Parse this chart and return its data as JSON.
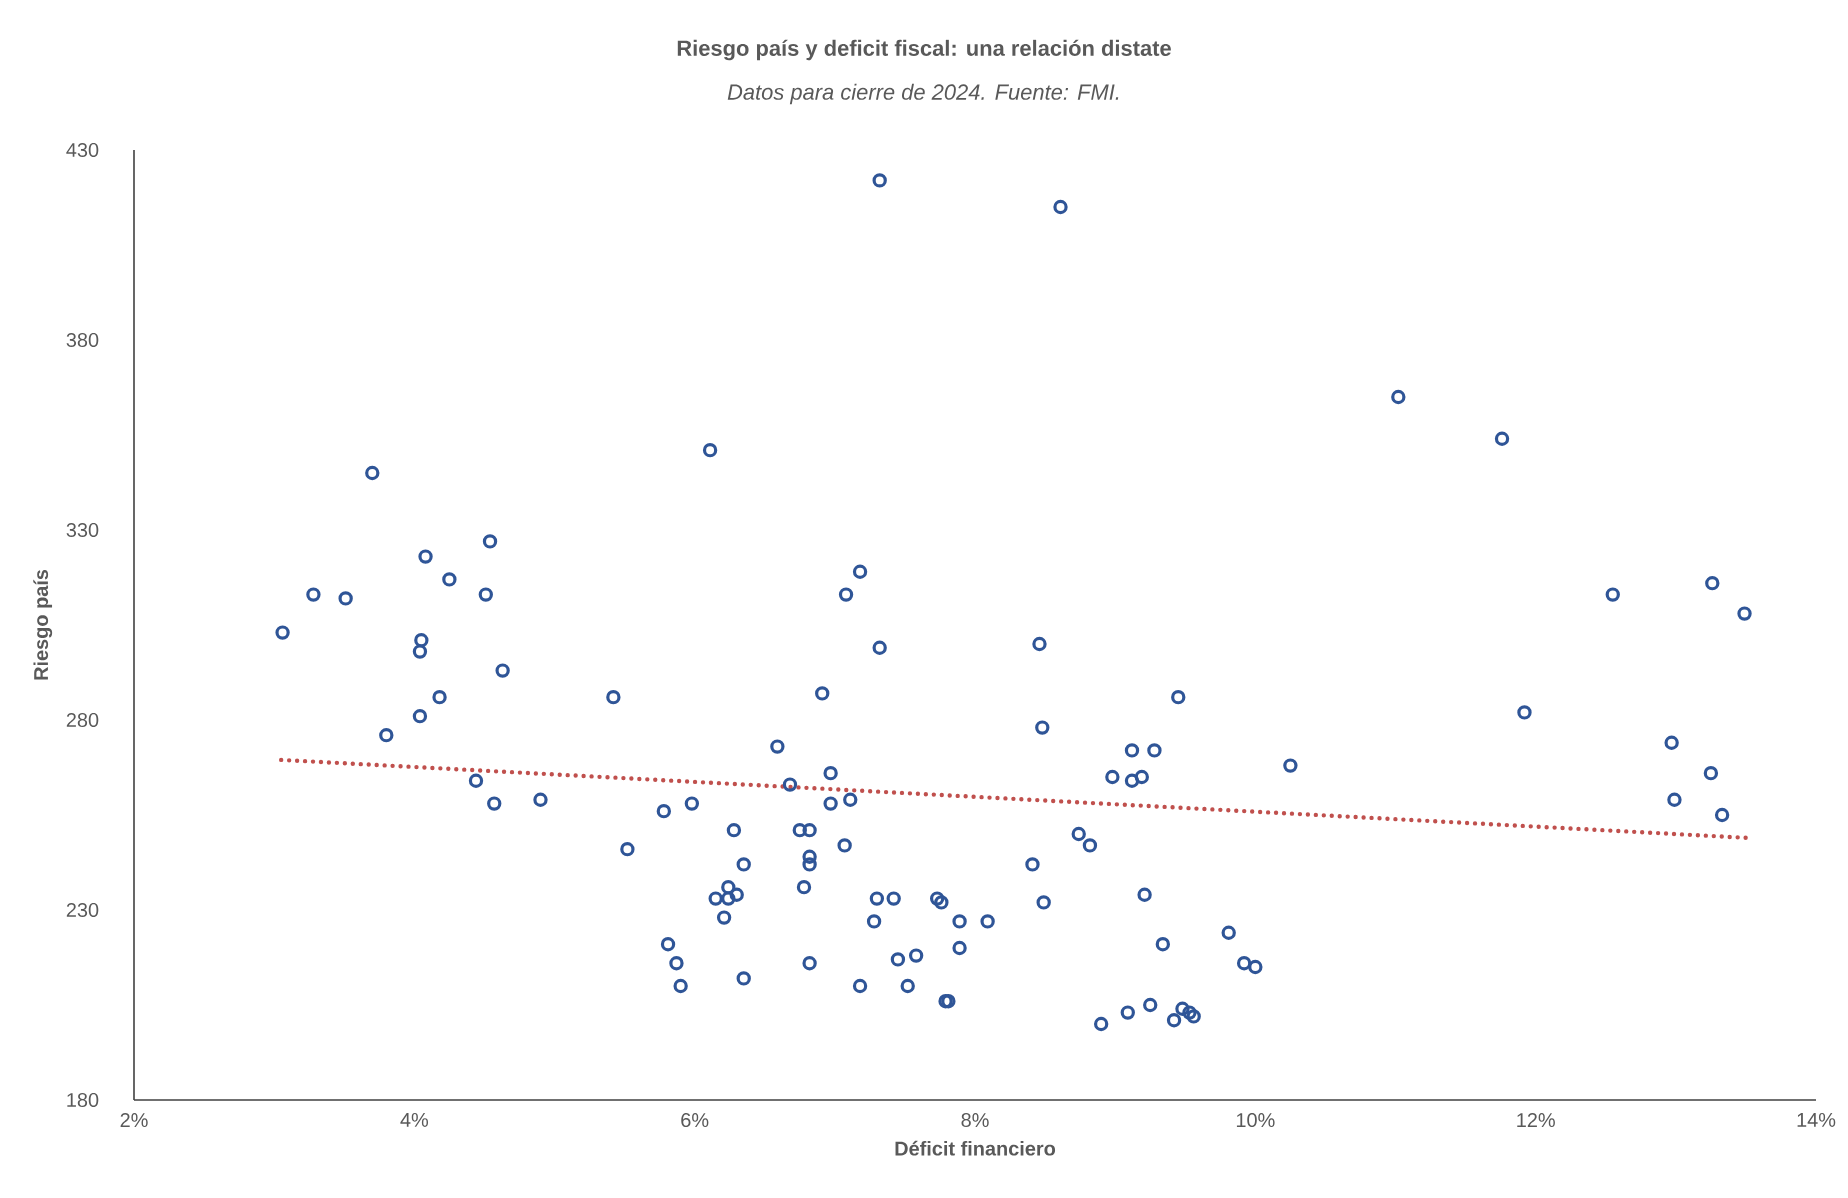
{
  "chart_data": {
    "type": "scatter",
    "title": "Riesgo país y deficit fiscal: una relación distate",
    "subtitle": "Datos para cierre de 2024. Fuente: FMI.",
    "xlabel": "Déficit financiero",
    "ylabel": "Riesgo país",
    "marker": "circle",
    "grid": false,
    "xlim": [
      2,
      14
    ],
    "ylim": [
      180,
      430
    ],
    "xticks": [
      {
        "value": 2,
        "label": "2%"
      },
      {
        "value": 4,
        "label": "4%"
      },
      {
        "value": 6,
        "label": "6%"
      },
      {
        "value": 8,
        "label": "8%"
      },
      {
        "value": 10,
        "label": "10%"
      },
      {
        "value": 12,
        "label": "12%"
      },
      {
        "value": 14,
        "label": "14%"
      }
    ],
    "yticks": [
      180,
      230,
      280,
      330,
      380,
      430
    ],
    "series": [
      {
        "color": "#2f5597",
        "x": [
          3.06,
          3.28,
          3.51,
          3.7,
          3.8,
          4.04,
          4.04,
          4.05,
          4.08,
          4.18,
          4.25,
          4.44,
          4.51,
          4.54,
          4.57,
          4.63,
          4.9,
          5.42,
          5.52,
          5.78,
          5.81,
          5.87,
          5.9,
          5.98,
          6.11,
          6.15,
          6.24,
          6.21,
          6.24,
          6.3,
          6.28,
          6.35,
          6.35,
          6.59,
          6.68,
          6.75,
          6.82,
          6.78,
          6.82,
          6.82,
          6.82,
          6.91,
          6.97,
          6.97,
          7.07,
          7.08,
          7.11,
          7.18,
          7.18,
          7.28,
          7.3,
          7.32,
          7.32,
          7.42,
          7.45,
          7.52,
          7.58,
          7.73,
          7.76,
          7.79,
          7.81,
          7.89,
          7.89,
          8.09,
          8.41,
          8.46,
          8.48,
          8.49,
          8.61,
          8.74,
          8.82,
          8.98,
          9.12,
          9.12,
          9.19,
          9.28,
          9.21,
          9.34,
          9.45,
          9.42,
          9.48,
          9.53,
          9.56,
          9.25,
          9.09,
          8.9,
          9.81,
          9.92,
          10.0,
          10.25,
          11.02,
          11.76,
          11.92,
          12.55,
          12.97,
          12.99,
          13.26,
          13.25,
          13.33,
          13.49
        ],
        "values": [
          303,
          313,
          312,
          345,
          276,
          281,
          298,
          301,
          323,
          286,
          317,
          264,
          313,
          327,
          258,
          293,
          259,
          286,
          246,
          256,
          221,
          216,
          210,
          258,
          351,
          233,
          233,
          228,
          236,
          234,
          251,
          242,
          212,
          273,
          263,
          251,
          251,
          236,
          242,
          244,
          216,
          287,
          266,
          258,
          247,
          313,
          259,
          319,
          210,
          227,
          233,
          299,
          422,
          233,
          217,
          210,
          218,
          233,
          232,
          206,
          206,
          227,
          220,
          227,
          242,
          300,
          278,
          232,
          415,
          250,
          247,
          265,
          272,
          264,
          265,
          272,
          234,
          221,
          286,
          201,
          204,
          203,
          202,
          205,
          203,
          200,
          224,
          216,
          215,
          268,
          365,
          354,
          282,
          313,
          274,
          259,
          316,
          266,
          255,
          308
        ]
      },
      {
        "type": "line",
        "color": "#c0504d",
        "line_style": "dotted",
        "marker": "none",
        "x": [
          3.05,
          13.5
        ],
        "values": [
          269.5,
          249
        ]
      }
    ]
  }
}
